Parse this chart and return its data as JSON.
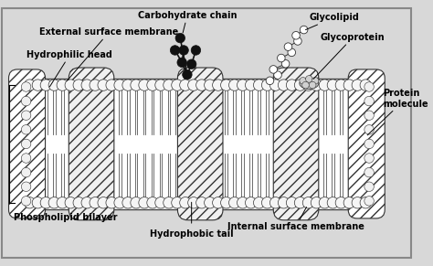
{
  "bg_color": "#d8d8d8",
  "membrane_fill": "#ffffff",
  "head_fill": "#f0f0f0",
  "head_edge": "#333333",
  "protein_fill": "#f0f0f0",
  "protein_edge": "#333333",
  "hatch_color": "#555555",
  "black_bead": "#111111",
  "white_bead_fill": "#ffffff",
  "white_bead_edge": "#333333",
  "label_color": "#000000",
  "label_fontsize": 7.0,
  "label_fontweight": "bold",
  "fig_width": 4.74,
  "fig_height": 2.91,
  "dpi": 100,
  "labels": {
    "carbohydrate_chain": "Carbohydrate chain",
    "external_surface": "External surface membrane",
    "hydrophilic_head": "Hydrophilic head",
    "hydrophobic_tail": "Hydrophobic tail",
    "phospholipid_bilayer": "Phospholipid bilayer",
    "internal_surface": "Internal surface membrane",
    "glycolipid": "Glycolipid",
    "glycoprotein": "Glycoprotein",
    "protein_molecule": "Protein\nmolecule"
  }
}
